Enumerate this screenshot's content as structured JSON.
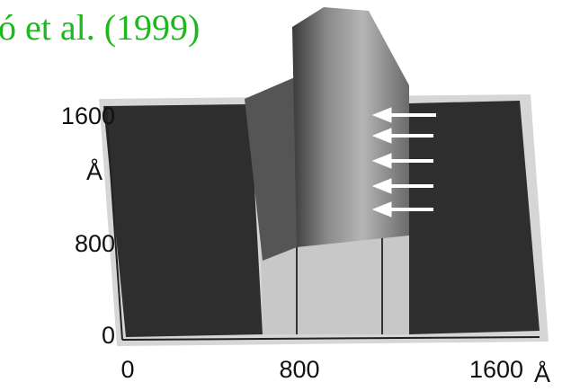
{
  "caption": "ó et al. (1999)",
  "y_axis": {
    "ticks": [
      "1600",
      "800",
      "0"
    ],
    "unit": "Å"
  },
  "x_axis": {
    "ticks": [
      "0",
      "800",
      "1600"
    ],
    "unit": "Å"
  }
}
